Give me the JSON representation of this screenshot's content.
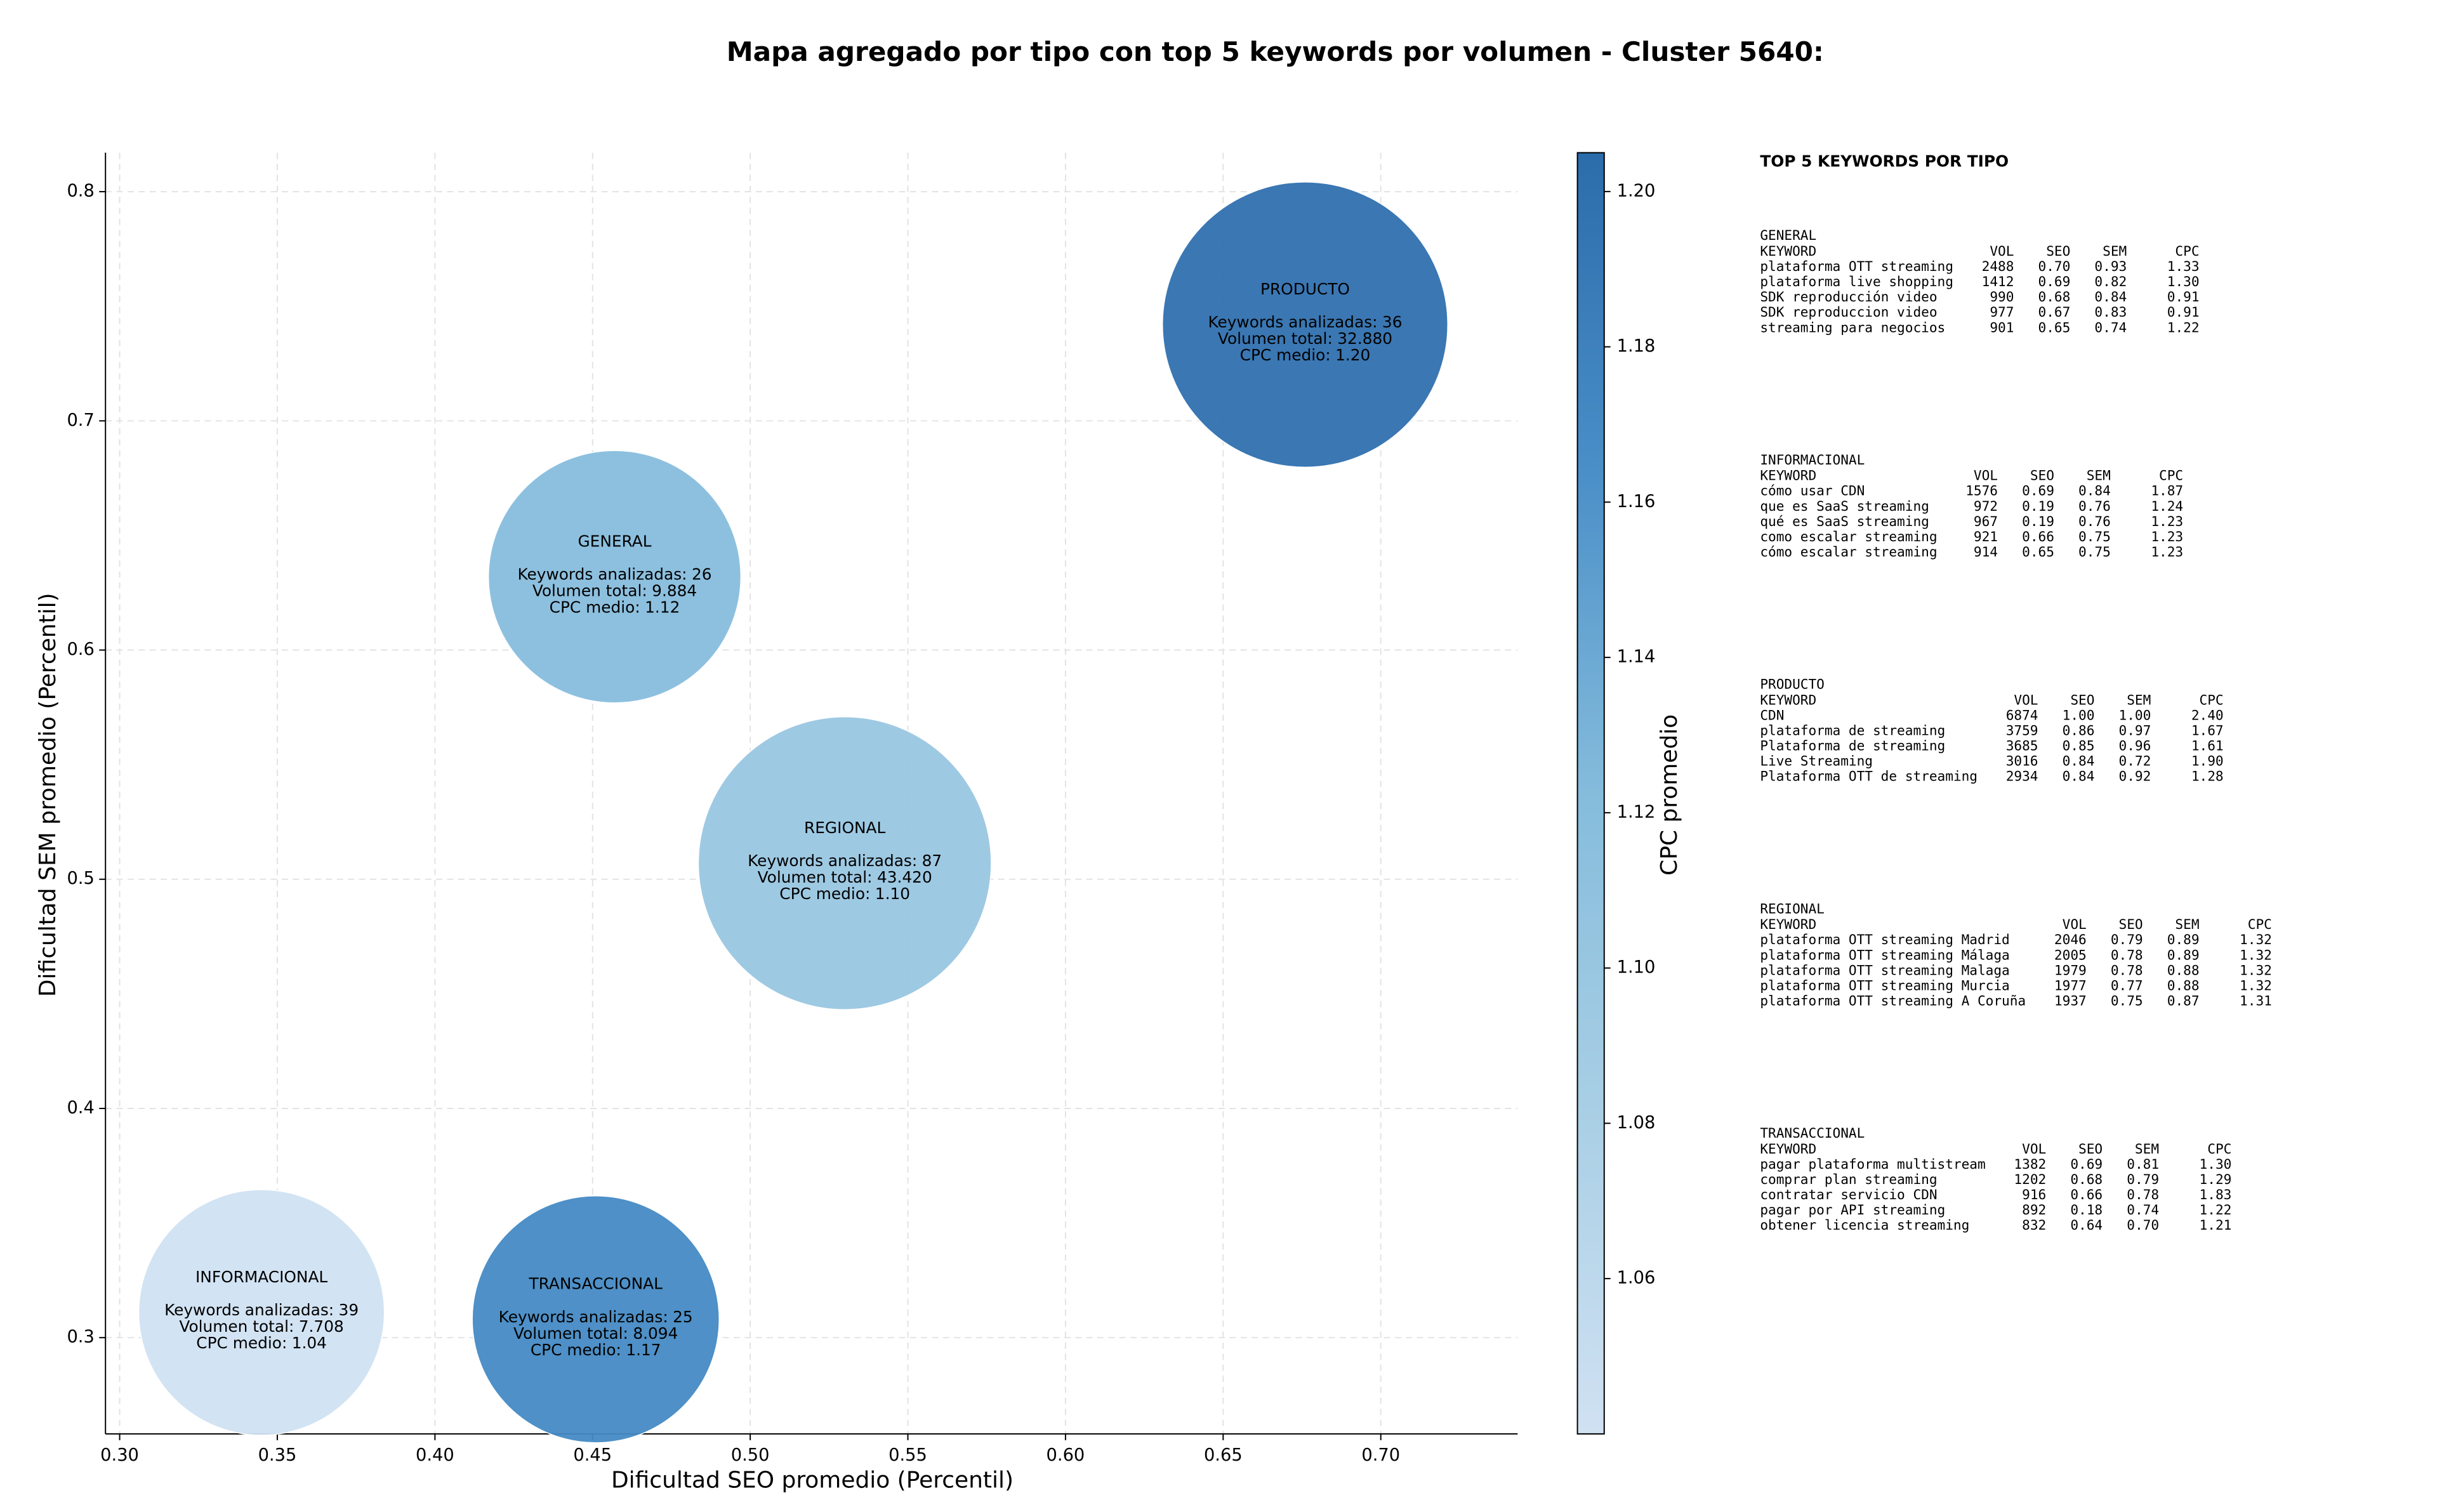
{
  "chart_data": {
    "type": "bubble",
    "title": "Mapa agregado por tipo con top 5 keywords por volumen - Cluster 5640:",
    "xlabel": "Dificultad SEO promedio (Percentil)",
    "ylabel": "Dificultad SEM promedio (Percentil)",
    "xlim": [
      0.2955,
      0.7434
    ],
    "ylim": [
      0.258,
      0.817
    ],
    "xticks": [
      {
        "value": 0.3,
        "label": "0.30"
      },
      0.35,
      {
        "value": 0.4,
        "label": "0.40"
      },
      0.45,
      {
        "value": 0.5,
        "label": "0.50"
      },
      0.55,
      {
        "value": 0.6,
        "label": "0.60"
      },
      0.65,
      {
        "value": 0.7,
        "label": "0.70"
      }
    ],
    "yticks": [
      0.3,
      0.4,
      0.5,
      0.6,
      0.7,
      0.8
    ],
    "grid": true,
    "annotation_labels": {
      "keywords": "Keywords analizadas:",
      "volume": "Volumen total:",
      "cpc": "CPC medio:"
    },
    "points": [
      {
        "name": "PRODUCTO",
        "x": 0.676,
        "y": 0.742,
        "keywords": 36,
        "volume": 32880,
        "volume_label": "32.880",
        "cpc": 1.2,
        "cpc_label": "1.20"
      },
      {
        "name": "GENERAL",
        "x": 0.457,
        "y": 0.632,
        "keywords": 26,
        "volume": 9884,
        "volume_label": "9.884",
        "cpc": 1.12,
        "cpc_label": "1.12"
      },
      {
        "name": "REGIONAL",
        "x": 0.53,
        "y": 0.507,
        "keywords": 87,
        "volume": 43420,
        "volume_label": "43.420",
        "cpc": 1.1,
        "cpc_label": "1.10"
      },
      {
        "name": "INFORMACIONAL",
        "x": 0.345,
        "y": 0.311,
        "keywords": 39,
        "volume": 7708,
        "volume_label": "7.708",
        "cpc": 1.04,
        "cpc_label": "1.04"
      },
      {
        "name": "TRANSACCIONAL",
        "x": 0.451,
        "y": 0.308,
        "keywords": 25,
        "volume": 8094,
        "volume_label": "8.094",
        "cpc": 1.17,
        "cpc_label": "1.17"
      }
    ],
    "colorbar": {
      "label": "CPC promedio",
      "clim": [
        1.04,
        1.205
      ],
      "ticks": [
        1.06,
        1.08,
        {
          "value": 1.1,
          "label": "1.10"
        },
        1.12,
        1.14,
        1.16,
        1.18,
        {
          "value": 1.2,
          "label": "1.20"
        }
      ],
      "colormap": [
        "#d0e1f2",
        "#a9cfe5",
        "#85bcdc",
        "#4a8fc8",
        "#2b6cab"
      ]
    }
  },
  "keyword_panel": {
    "title": "TOP 5 KEYWORDS POR TIPO",
    "columns": [
      "KEYWORD",
      "VOL",
      "SEO",
      "SEM",
      "CPC"
    ],
    "groups": [
      {
        "name": "GENERAL",
        "rows": [
          [
            "plataforma OTT streaming",
            "2488",
            "0.70",
            "0.93",
            "1.33"
          ],
          [
            "plataforma live shopping",
            "1412",
            "0.69",
            "0.82",
            "1.30"
          ],
          [
            "SDK reproducción video",
            "990",
            "0.68",
            "0.84",
            "0.91"
          ],
          [
            "SDK reproduccion video",
            "977",
            "0.67",
            "0.83",
            "0.91"
          ],
          [
            "streaming para negocios",
            "901",
            "0.65",
            "0.74",
            "1.22"
          ]
        ]
      },
      {
        "name": "INFORMACIONAL",
        "rows": [
          [
            "cómo usar CDN",
            "1576",
            "0.69",
            "0.84",
            "1.87"
          ],
          [
            "que es SaaS streaming",
            "972",
            "0.19",
            "0.76",
            "1.24"
          ],
          [
            "qué es SaaS streaming",
            "967",
            "0.19",
            "0.76",
            "1.23"
          ],
          [
            "como escalar streaming",
            "921",
            "0.66",
            "0.75",
            "1.23"
          ],
          [
            "cómo escalar streaming",
            "914",
            "0.65",
            "0.75",
            "1.23"
          ]
        ]
      },
      {
        "name": "PRODUCTO",
        "rows": [
          [
            "CDN",
            "6874",
            "1.00",
            "1.00",
            "2.40"
          ],
          [
            "plataforma de streaming",
            "3759",
            "0.86",
            "0.97",
            "1.67"
          ],
          [
            "Plataforma de streaming",
            "3685",
            "0.85",
            "0.96",
            "1.61"
          ],
          [
            "Live Streaming",
            "3016",
            "0.84",
            "0.72",
            "1.90"
          ],
          [
            "Plataforma OTT de streaming",
            "2934",
            "0.84",
            "0.92",
            "1.28"
          ]
        ]
      },
      {
        "name": "REGIONAL",
        "rows": [
          [
            "plataforma OTT streaming Madrid",
            "2046",
            "0.79",
            "0.89",
            "1.32"
          ],
          [
            "plataforma OTT streaming Málaga",
            "2005",
            "0.78",
            "0.89",
            "1.32"
          ],
          [
            "plataforma OTT streaming Malaga",
            "1979",
            "0.78",
            "0.88",
            "1.32"
          ],
          [
            "plataforma OTT streaming Murcia",
            "1977",
            "0.77",
            "0.88",
            "1.32"
          ],
          [
            "plataforma OTT streaming A Coruña",
            "1937",
            "0.75",
            "0.87",
            "1.31"
          ]
        ]
      },
      {
        "name": "TRANSACCIONAL",
        "rows": [
          [
            "pagar plataforma multistream",
            "1382",
            "0.69",
            "0.81",
            "1.30"
          ],
          [
            "comprar plan streaming",
            "1202",
            "0.68",
            "0.79",
            "1.29"
          ],
          [
            "contratar servicio CDN",
            "916",
            "0.66",
            "0.78",
            "1.83"
          ],
          [
            "pagar por API streaming",
            "892",
            "0.18",
            "0.74",
            "1.22"
          ],
          [
            "obtener licencia streaming",
            "832",
            "0.64",
            "0.70",
            "1.21"
          ]
        ]
      }
    ]
  }
}
